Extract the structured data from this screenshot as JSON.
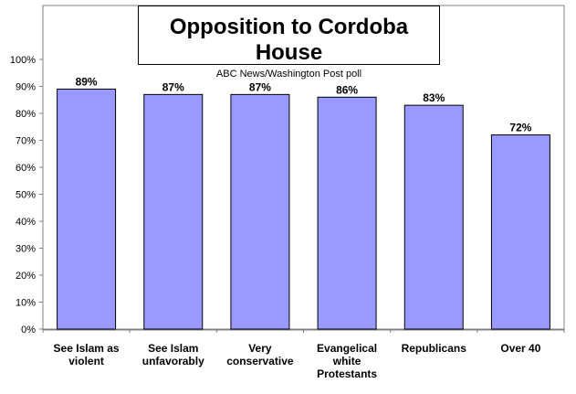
{
  "chart_data": {
    "type": "bar",
    "title": "Opposition to Cordoba House",
    "subtitle": "ABC News/Washington Post poll",
    "categories": [
      [
        "See Islam as",
        "violent"
      ],
      [
        "See Islam",
        "unfavorably"
      ],
      [
        "Very",
        "conservative"
      ],
      [
        "Evangelical",
        "white",
        "Protestants"
      ],
      [
        "Republicans"
      ],
      [
        "Over 40"
      ]
    ],
    "values": [
      89,
      87,
      87,
      86,
      83,
      72
    ],
    "data_labels": [
      "89%",
      "87%",
      "87%",
      "86%",
      "83%",
      "72%"
    ],
    "y_ticks": [
      "0%",
      "10%",
      "20%",
      "30%",
      "40%",
      "50%",
      "60%",
      "70%",
      "80%",
      "90%",
      "100%"
    ],
    "ylim": [
      0,
      100
    ],
    "grid": false,
    "colors": {
      "bar": "#9999ff",
      "bar_stroke": "#000000",
      "axis": "#808080",
      "plot_border": "#808080"
    }
  }
}
